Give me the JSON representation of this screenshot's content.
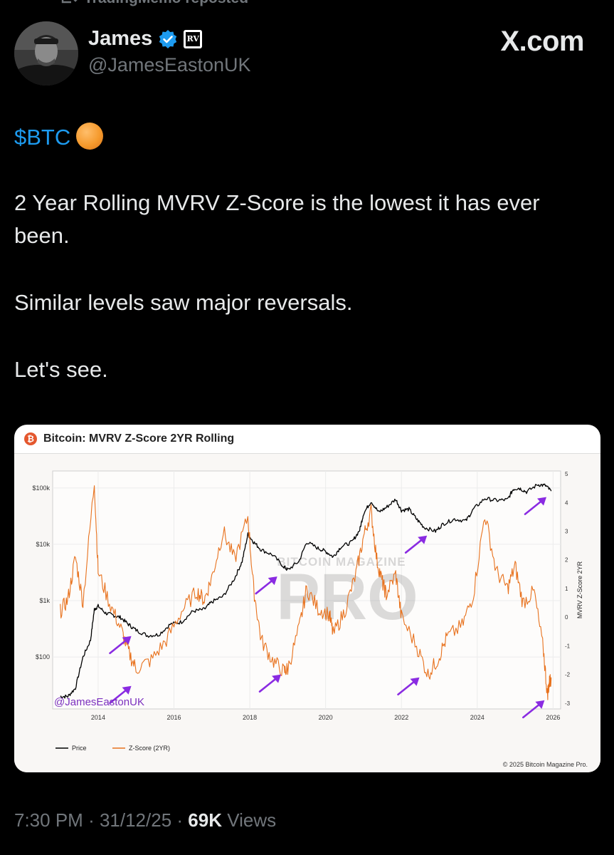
{
  "repost": {
    "icon": "repost-icon",
    "label": "TradingMemo reposted"
  },
  "author": {
    "name": "James",
    "handle": "@JamesEastonUK",
    "verified_color": "#1d9bf0",
    "badge_text": "RV"
  },
  "brand": "X.com",
  "tweet": {
    "cashtag": "$BTC",
    "emoji": "orange-circle",
    "line1": "2 Year Rolling MVRV Z-Score is the lowest it has ever been.",
    "line2": "Similar levels saw major reversals.",
    "line3": "Let's see."
  },
  "card": {
    "title": "Bitcoin: MVRV Z-Score 2YR Rolling",
    "watermark_top": "BITCOIN MAGAZINE",
    "watermark_main": "PRO",
    "handle_overlay": "@JamesEastonUK",
    "copyright": "© 2025 Bitcoin Magazine Pro."
  },
  "chart_data": {
    "type": "line",
    "title": "Bitcoin: MVRV Z-Score 2YR Rolling",
    "x_ticks": [
      "2014",
      "2016",
      "2018",
      "2020",
      "2022",
      "2024",
      "2026"
    ],
    "xlim": [
      2012.8,
      2026.2
    ],
    "y_left": {
      "scale": "log",
      "ticks": [
        "$100",
        "$1k",
        "$10k",
        "$100k"
      ],
      "values": [
        100,
        1000,
        10000,
        100000
      ],
      "ylim": [
        12,
        200000
      ]
    },
    "y_right": {
      "label": "MVRV Z-Score 2YR",
      "ticks": [
        -3,
        -2,
        -1,
        0,
        1,
        2,
        3,
        4,
        5
      ],
      "ylim": [
        -3.2,
        5.1
      ]
    },
    "series": [
      {
        "name": "Price",
        "color": "#000000",
        "axis": "left",
        "x": [
          2013.0,
          2013.2,
          2013.4,
          2013.6,
          2013.8,
          2013.9,
          2014.0,
          2014.2,
          2014.4,
          2014.6,
          2014.8,
          2015.0,
          2015.3,
          2015.6,
          2015.9,
          2016.2,
          2016.5,
          2016.8,
          2017.0,
          2017.3,
          2017.6,
          2017.8,
          2017.95,
          2018.1,
          2018.3,
          2018.6,
          2018.9,
          2019.0,
          2019.3,
          2019.5,
          2019.8,
          2020.0,
          2020.2,
          2020.4,
          2020.7,
          2020.9,
          2021.0,
          2021.2,
          2021.4,
          2021.6,
          2021.85,
          2022.0,
          2022.2,
          2022.4,
          2022.6,
          2022.9,
          2023.1,
          2023.4,
          2023.7,
          2023.9,
          2024.2,
          2024.5,
          2024.8,
          2024.95,
          2025.1,
          2025.3,
          2025.6,
          2025.8,
          2025.95
        ],
        "values": [
          20,
          20,
          28,
          100,
          200,
          700,
          800,
          600,
          550,
          500,
          380,
          300,
          240,
          250,
          380,
          420,
          650,
          700,
          950,
          1200,
          2500,
          5000,
          15000,
          11000,
          8000,
          6500,
          4000,
          3500,
          5000,
          11000,
          8500,
          7500,
          6000,
          9000,
          11000,
          18000,
          35000,
          58000,
          37000,
          45000,
          63000,
          40000,
          42000,
          28000,
          20000,
          17000,
          23000,
          28000,
          26000,
          42000,
          65000,
          60000,
          62000,
          95000,
          100000,
          85000,
          115000,
          110000,
          88000
        ]
      },
      {
        "name": "Z-Score (2YR)",
        "color": "#e8721e",
        "axis": "right",
        "x": [
          2013.0,
          2013.2,
          2013.4,
          2013.6,
          2013.9,
          2014.0,
          2014.3,
          2014.6,
          2014.8,
          2015.0,
          2015.4,
          2015.8,
          2016.2,
          2016.6,
          2016.8,
          2017.0,
          2017.3,
          2017.6,
          2017.95,
          2018.1,
          2018.3,
          2018.6,
          2018.9,
          2019.0,
          2019.3,
          2019.5,
          2019.8,
          2020.1,
          2020.2,
          2020.5,
          2020.8,
          2021.0,
          2021.2,
          2021.35,
          2021.5,
          2021.6,
          2021.85,
          2022.0,
          2022.4,
          2022.7,
          2022.95,
          2023.2,
          2023.6,
          2023.9,
          2024.2,
          2024.5,
          2024.8,
          2025.0,
          2025.2,
          2025.5,
          2025.75,
          2025.85,
          2025.9,
          2025.95
        ],
        "values": [
          0.2,
          0.6,
          2.1,
          0.5,
          4.7,
          1.6,
          0.5,
          -0.4,
          -1.2,
          -1.8,
          -1.5,
          -0.8,
          0.2,
          0.9,
          0.6,
          1.4,
          3.0,
          2.0,
          3.5,
          1.0,
          -0.8,
          -1.5,
          -1.9,
          -1.8,
          -0.4,
          1.0,
          0.3,
          0.1,
          -0.6,
          0.2,
          1.5,
          2.8,
          3.7,
          2.0,
          1.2,
          0.8,
          1.5,
          0.0,
          -1.0,
          -2.0,
          -1.5,
          -0.7,
          -0.3,
          0.8,
          3.6,
          1.6,
          1.0,
          1.8,
          0.5,
          0.9,
          -1.2,
          -2.7,
          -2.3,
          -2.1
        ]
      }
    ],
    "legend": [
      "Price",
      "Z-Score (2YR)"
    ],
    "legend_placement": "bottom-left",
    "arrow_color": "#8a2be2"
  },
  "footer": {
    "time": "7:30 PM",
    "date": "31/12/25",
    "views_count": "69K",
    "views_label": "Views"
  }
}
